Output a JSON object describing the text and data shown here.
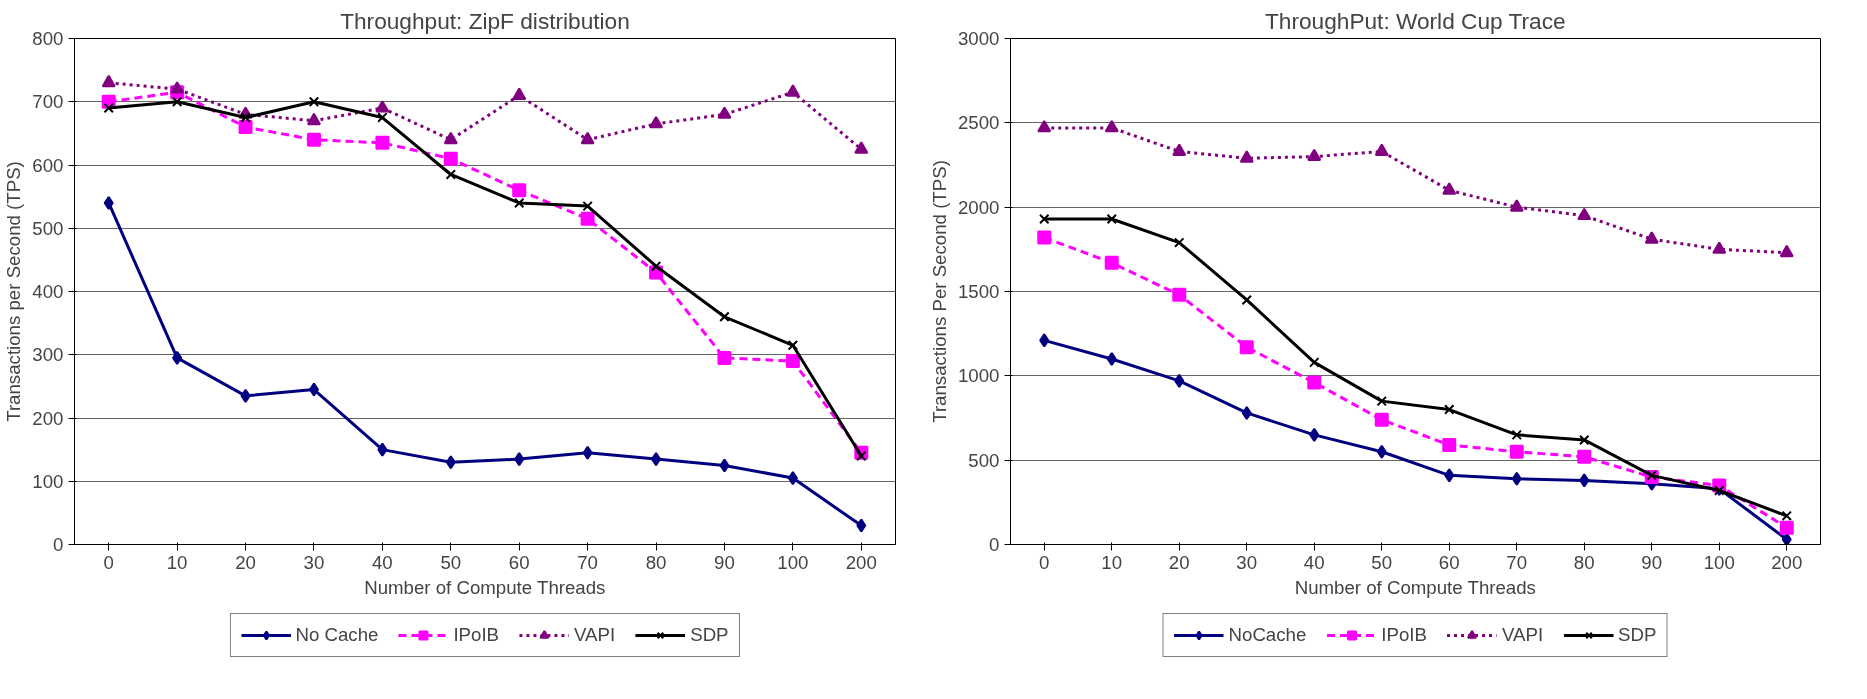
{
  "chart_data": [
    {
      "type": "line",
      "title": "Throughput: ZipF distribution",
      "xlabel": "Number of Compute Threads",
      "ylabel": "Transactions per Second (TPS)",
      "categories": [
        "0",
        "10",
        "20",
        "30",
        "40",
        "50",
        "60",
        "70",
        "80",
        "90",
        "100",
        "200"
      ],
      "ylim": [
        0,
        800
      ],
      "yticks": [
        0,
        100,
        200,
        300,
        400,
        500,
        600,
        700,
        800
      ],
      "grid": "y",
      "legend": "bottom",
      "series": [
        {
          "name": "No Cache",
          "color": "#000080",
          "marker": "diamond",
          "line_style": "solid",
          "values": [
            540,
            295,
            235,
            245,
            150,
            130,
            135,
            145,
            135,
            125,
            105,
            30
          ]
        },
        {
          "name": "IPoIB",
          "color": "#ff00ff",
          "marker": "square",
          "line_style": "dashed",
          "values": [
            700,
            715,
            660,
            640,
            635,
            610,
            560,
            515,
            430,
            295,
            290,
            145
          ]
        },
        {
          "name": "VAPI",
          "color": "#800080",
          "marker": "triangle",
          "line_style": "dotted",
          "values": [
            730,
            720,
            680,
            670,
            690,
            640,
            710,
            640,
            665,
            680,
            715,
            625
          ]
        },
        {
          "name": "SDP",
          "color": "#000000",
          "marker": "cross",
          "line_style": "solid",
          "values": [
            690,
            700,
            675,
            700,
            675,
            585,
            540,
            535,
            440,
            360,
            315,
            140
          ]
        }
      ]
    },
    {
      "type": "line",
      "title": "ThroughPut: World Cup Trace",
      "xlabel": "Number of Compute Threads",
      "ylabel": "Transactions Per Second (TPS)",
      "categories": [
        "0",
        "10",
        "20",
        "30",
        "40",
        "50",
        "60",
        "70",
        "80",
        "90",
        "100",
        "200"
      ],
      "ylim": [
        0,
        3000
      ],
      "yticks": [
        0,
        500,
        1000,
        1500,
        2000,
        2500,
        3000
      ],
      "grid": "y",
      "legend": "bottom",
      "series": [
        {
          "name": "NoCache",
          "color": "#000080",
          "marker": "diamond",
          "line_style": "solid",
          "values": [
            1210,
            1100,
            970,
            780,
            650,
            550,
            410,
            390,
            380,
            360,
            330,
            30
          ]
        },
        {
          "name": "IPoIB",
          "color": "#ff00ff",
          "marker": "square",
          "line_style": "dashed",
          "values": [
            1820,
            1670,
            1480,
            1170,
            960,
            740,
            590,
            550,
            520,
            400,
            350,
            100
          ]
        },
        {
          "name": "VAPI",
          "color": "#800080",
          "marker": "triangle",
          "line_style": "dotted",
          "values": [
            2470,
            2470,
            2330,
            2290,
            2300,
            2330,
            2100,
            2000,
            1950,
            1810,
            1750,
            1730
          ]
        },
        {
          "name": "SDP",
          "color": "#000000",
          "marker": "cross",
          "line_style": "solid",
          "values": [
            1930,
            1930,
            1790,
            1450,
            1080,
            850,
            800,
            650,
            620,
            410,
            320,
            170
          ]
        }
      ]
    }
  ]
}
